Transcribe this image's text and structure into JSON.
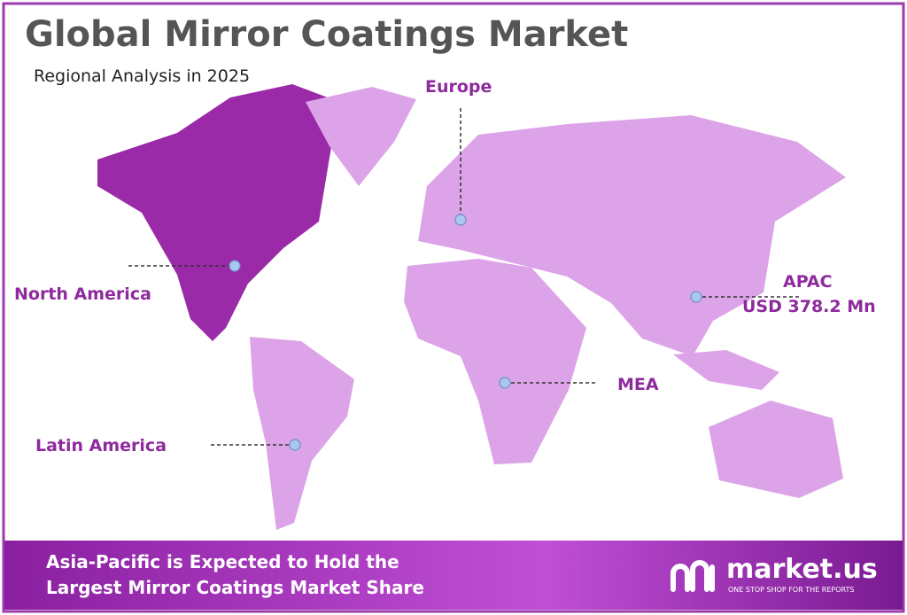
{
  "header": {
    "title": "Global Mirror Coatings Market",
    "subtitle": "Regional Analysis in 2025"
  },
  "regions": [
    {
      "label": "North America"
    },
    {
      "label": "Europe"
    },
    {
      "label": "APAC",
      "value": "USD 378.2 Mn"
    },
    {
      "label": "MEA"
    },
    {
      "label": "Latin America"
    }
  ],
  "footer": {
    "lines": [
      "Asia-Pacific is Expected to Hold the",
      "Largest Mirror Coatings Market Share"
    ]
  },
  "logo": {
    "name": "market.us",
    "tagline": "ONE STOP SHOP FOR THE REPORTS"
  }
}
